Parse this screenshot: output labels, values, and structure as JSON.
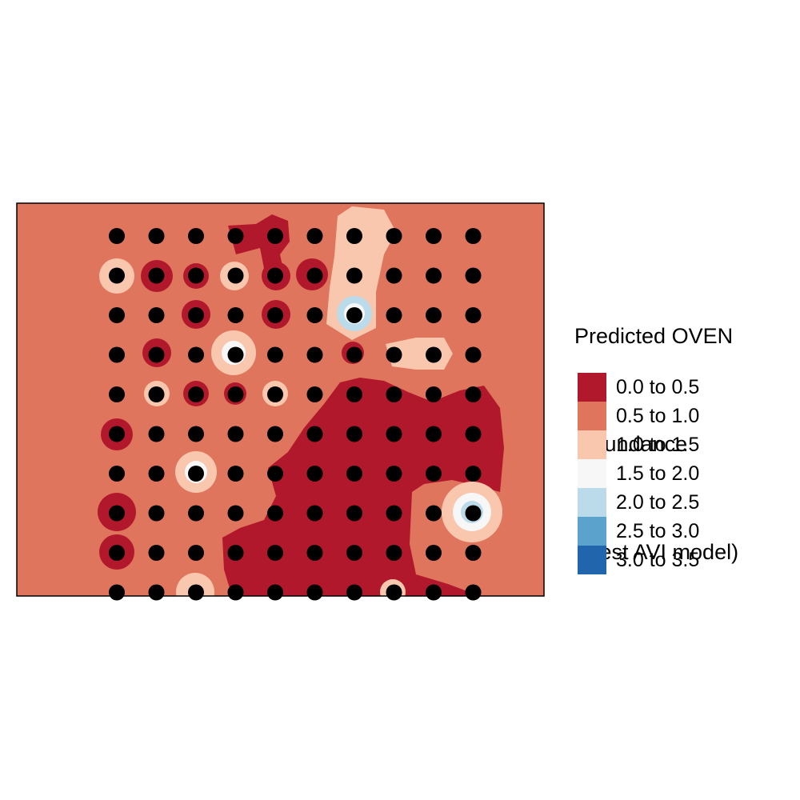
{
  "title_lines": [
    "Predicted OVEN",
    " abundance",
    " (best AVI model)"
  ],
  "legend": [
    {
      "label": "0.0 to 0.5",
      "color": "#b2182b"
    },
    {
      "label": "0.5 to 1.0",
      "color": "#e0755d"
    },
    {
      "label": "1.0 to 1.5",
      "color": "#f9c7ad"
    },
    {
      "label": "1.5 to 2.0",
      "color": "#f7f7f7"
    },
    {
      "label": "2.0 to 2.5",
      "color": "#bcdbea"
    },
    {
      "label": "2.5 to 3.0",
      "color": "#5ba2cd"
    },
    {
      "label": "3.0 to 3.5",
      "color": "#2166ac"
    }
  ],
  "map": {
    "background_class": "0.5 to 1.0",
    "point_grid": {
      "rows": 10,
      "cols": 10
    },
    "point_color": "#000000"
  }
}
